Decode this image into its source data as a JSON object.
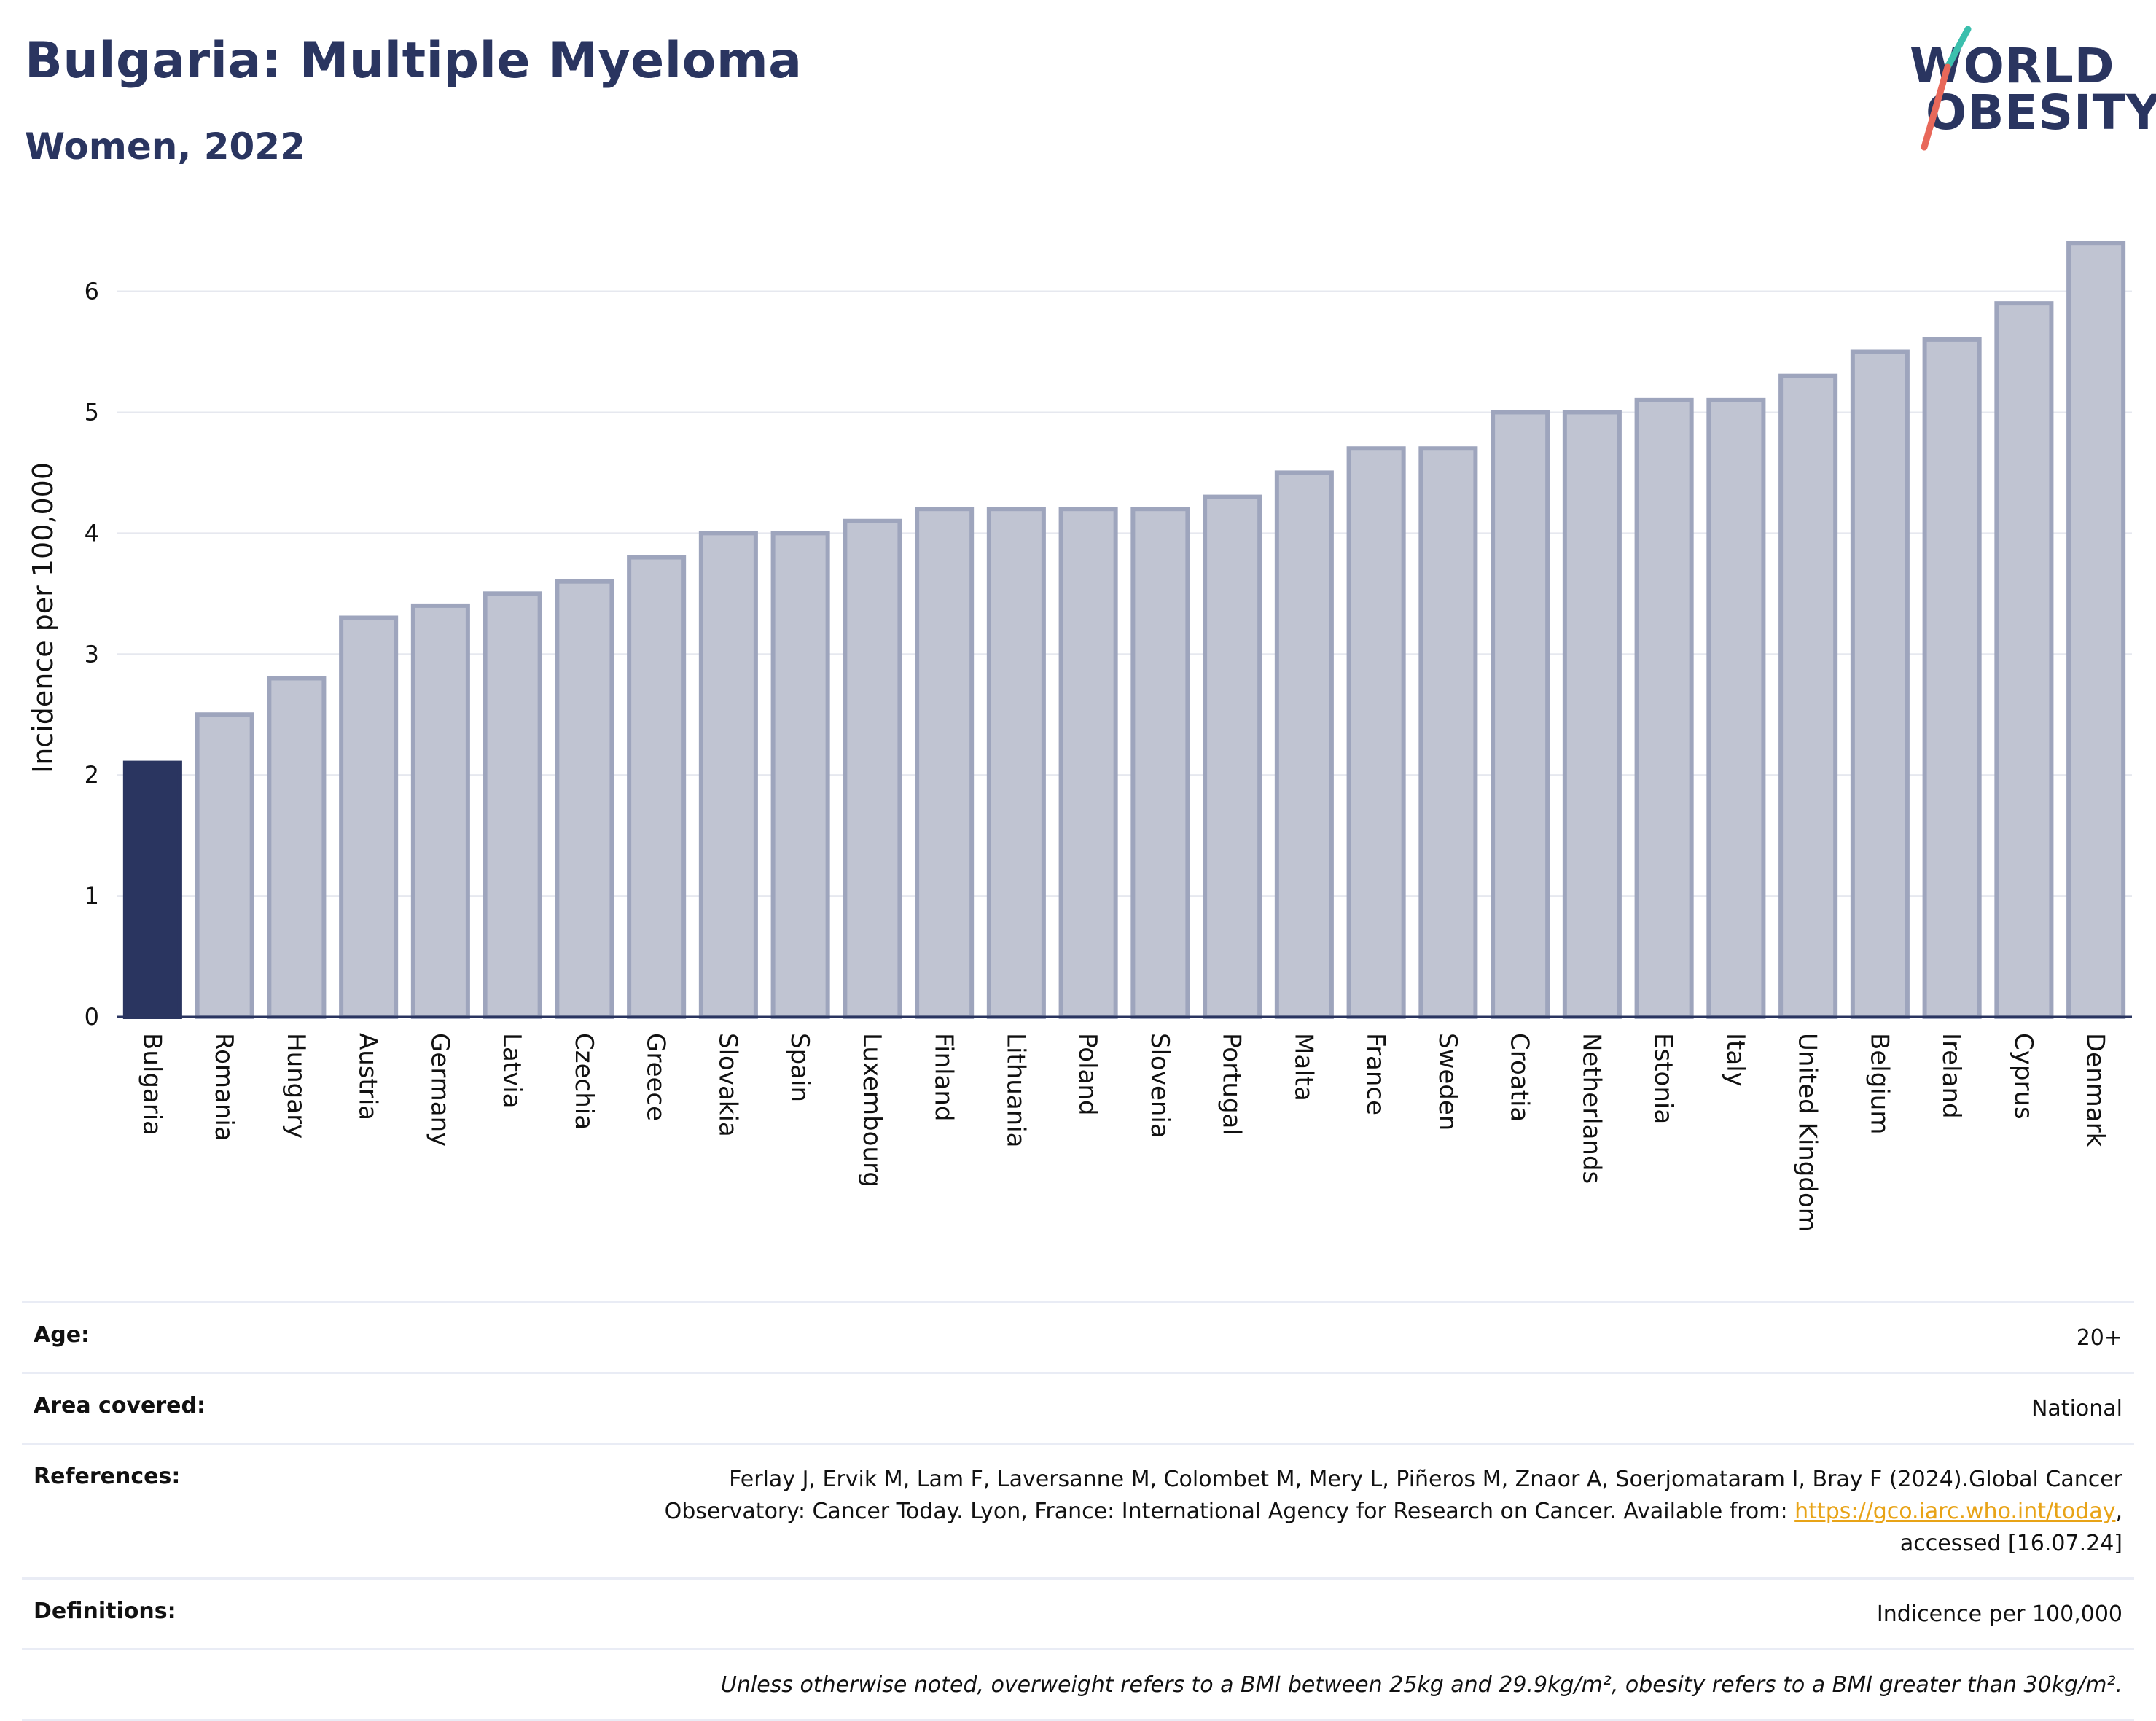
{
  "title": "Bulgaria: Multiple Myeloma",
  "subtitle": "Women, 2022",
  "logo": {
    "line1": "WORLD",
    "line2": "OBESITY"
  },
  "colors": {
    "highlight": "#2a3560",
    "bar": "#c0c4d2",
    "bar_edge": "#9ea5bd",
    "accent_teal": "#3bbfad",
    "accent_red": "#e8685a"
  },
  "chart_data": {
    "type": "bar",
    "categories": [
      "Bulgaria",
      "Romania",
      "Hungary",
      "Austria",
      "Germany",
      "Latvia",
      "Czechia",
      "Greece",
      "Slovakia",
      "Spain",
      "Luxembourg",
      "Finland",
      "Lithuania",
      "Poland",
      "Slovenia",
      "Portugal",
      "Malta",
      "France",
      "Sweden",
      "Croatia",
      "Netherlands",
      "Estonia",
      "Italy",
      "United Kingdom",
      "Belgium",
      "Ireland",
      "Cyprus",
      "Denmark"
    ],
    "values": [
      2.1,
      2.5,
      2.8,
      3.3,
      3.4,
      3.5,
      3.6,
      3.8,
      4.0,
      4.0,
      4.1,
      4.2,
      4.2,
      4.2,
      4.2,
      4.3,
      4.5,
      4.7,
      4.7,
      5.0,
      5.0,
      5.1,
      5.1,
      5.3,
      5.5,
      5.6,
      5.9,
      6.4
    ],
    "highlight": "Bulgaria",
    "ylabel": "Incidence per 100,000",
    "xlabel": "",
    "ylim": [
      0,
      6.6
    ],
    "yticks": [
      0,
      1,
      2,
      3,
      4,
      5,
      6
    ],
    "grid": true
  },
  "meta": {
    "age_label": "Age:",
    "age_value": "20+",
    "area_label": "Area covered:",
    "area_value": "National",
    "ref_label": "References:",
    "ref_text_1": "Ferlay J, Ervik M, Lam F, Laversanne M, Colombet M, Mery L, Piñeros M, Znaor A, Soerjomataram I, Bray F (2024).Global Cancer Observatory: Cancer Today. Lyon, France: International Agency for Research on Cancer. Available from: ",
    "ref_link": "https://gco.iarc.who.int/today",
    "ref_text_2": ", accessed [16.07.24]",
    "def_label": "Definitions:",
    "def_value": "Indicence per 100,000",
    "note": "Unless otherwise noted, overweight refers to a BMI between 25kg and 29.9kg/m², obesity refers to a BMI greater than 30kg/m²."
  }
}
